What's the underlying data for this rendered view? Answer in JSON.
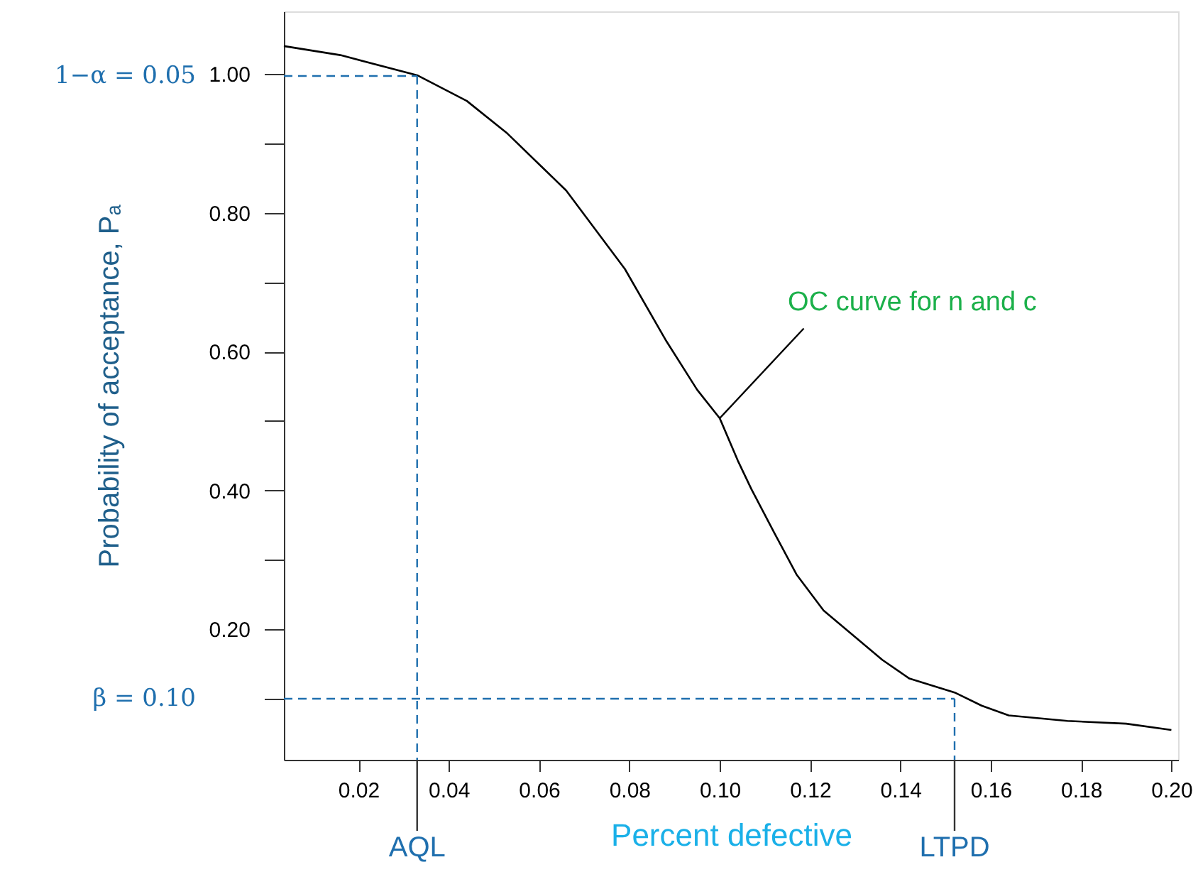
{
  "chart_data": {
    "type": "line",
    "xlabel": "Percent defective",
    "ylabel": "Probability of acceptance, Pₐ",
    "x": [
      0.0035,
      0.016,
      0.033,
      0.044,
      0.053,
      0.066,
      0.079,
      0.088,
      0.095,
      0.1,
      0.104,
      0.107,
      0.112,
      0.117,
      0.123,
      0.136,
      0.142,
      0.152,
      0.158,
      0.164,
      0.177,
      0.19,
      0.2
    ],
    "series": [
      {
        "color": "#000000",
        "values": [
          1.04,
          1.027,
          0.998,
          0.961,
          0.914,
          0.832,
          0.719,
          0.617,
          0.545,
          0.504,
          0.443,
          0.402,
          0.34,
          0.279,
          0.227,
          0.156,
          0.129,
          0.109,
          0.09,
          0.076,
          0.068,
          0.064,
          0.055
        ]
      }
    ],
    "xlim": [
      0.0035,
      0.2015
    ],
    "ylim": [
      0.012,
      1.09
    ],
    "xticks": [
      0.02,
      0.04,
      0.06,
      0.08,
      {
        "value": 0.1,
        "label": "0.10"
      },
      0.12,
      0.14,
      0.16,
      0.18,
      {
        "value": 0.2,
        "label": "0.20"
      }
    ],
    "yticks": [
      {
        "value": 0.1,
        "label": null
      },
      {
        "value": 0.2,
        "label": "0.20"
      },
      {
        "value": 0.3,
        "label": null
      },
      {
        "value": 0.4,
        "label": "0.40"
      },
      {
        "value": 0.5,
        "label": null
      },
      {
        "value": 0.6,
        "label": "0.60"
      },
      {
        "value": 0.7,
        "label": null
      },
      {
        "value": 0.8,
        "label": "0.80"
      },
      {
        "value": 0.9,
        "label": null
      },
      {
        "value": 1.0,
        "label": "1.00"
      }
    ],
    "ref_lines": [
      {
        "axis": "y",
        "value": 0.997,
        "label": "1−α = 0.05",
        "color": "#1f6fae",
        "line_style": "dashed"
      },
      {
        "axis": "y",
        "value": 0.1,
        "label": "β = 0.10",
        "color": "#1f6fae",
        "line_style": "dashed"
      },
      {
        "axis": "x",
        "value": 0.033,
        "label": "AQL",
        "color": "#1f6fae",
        "line_style": "dashed"
      },
      {
        "axis": "x",
        "value": 0.152,
        "label": "LTPD",
        "color": "#1f6fae",
        "line_style": "dashed"
      }
    ],
    "annotations": [
      {
        "text": "OC curve for n and c",
        "x": 0.1,
        "y": 0.504
      }
    ],
    "grid": false,
    "marker": "none",
    "line_style": "solid"
  }
}
